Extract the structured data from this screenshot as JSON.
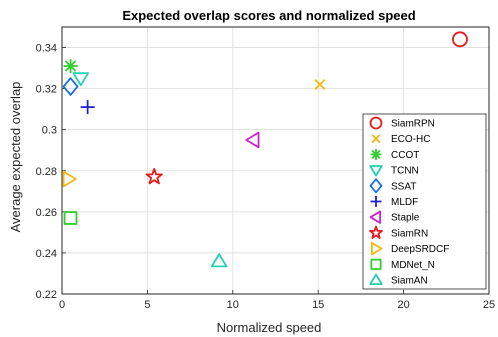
{
  "chart_data": {
    "type": "scatter",
    "title": "Expected overlap scores and normalized speed",
    "xlabel": "Normalized speed",
    "ylabel": "Average expected overlap",
    "xlim": [
      0,
      25
    ],
    "ylim": [
      0.22,
      0.35
    ],
    "xticks": [
      0,
      5,
      10,
      15,
      20,
      25
    ],
    "yticks": [
      0.22,
      0.24,
      0.26,
      0.28,
      0.3,
      0.32,
      0.34
    ],
    "grid": true,
    "legend_position": "bottom-right",
    "series": [
      {
        "name": "SiamRPN",
        "x": 23.3,
        "y": 0.344,
        "marker": "circle",
        "color": "#e8191a"
      },
      {
        "name": "ECO-HC",
        "x": 15.1,
        "y": 0.322,
        "marker": "x",
        "color": "#f2b90f"
      },
      {
        "name": "CCOT",
        "x": 0.5,
        "y": 0.331,
        "marker": "asterisk",
        "color": "#33cc33"
      },
      {
        "name": "TCNN",
        "x": 1.1,
        "y": 0.325,
        "marker": "triangle-down",
        "color": "#22d0b4"
      },
      {
        "name": "SSAT",
        "x": 0.5,
        "y": 0.321,
        "marker": "diamond",
        "color": "#1a6fe0"
      },
      {
        "name": "MLDF",
        "x": 1.5,
        "y": 0.311,
        "marker": "plus",
        "color": "#2222cc"
      },
      {
        "name": "Staple",
        "x": 11.2,
        "y": 0.295,
        "marker": "triangle-left",
        "color": "#cc22cc"
      },
      {
        "name": "SiamRN",
        "x": 5.4,
        "y": 0.277,
        "marker": "star",
        "color": "#e8191a"
      },
      {
        "name": "DeepSRDCF",
        "x": 0.4,
        "y": 0.276,
        "marker": "triangle-right",
        "color": "#f2b90f"
      },
      {
        "name": "MDNet_N",
        "x": 0.5,
        "y": 0.257,
        "marker": "square",
        "color": "#33cc33"
      },
      {
        "name": "SiamAN",
        "x": 9.2,
        "y": 0.236,
        "marker": "triangle-up",
        "color": "#22d0b4"
      }
    ]
  }
}
